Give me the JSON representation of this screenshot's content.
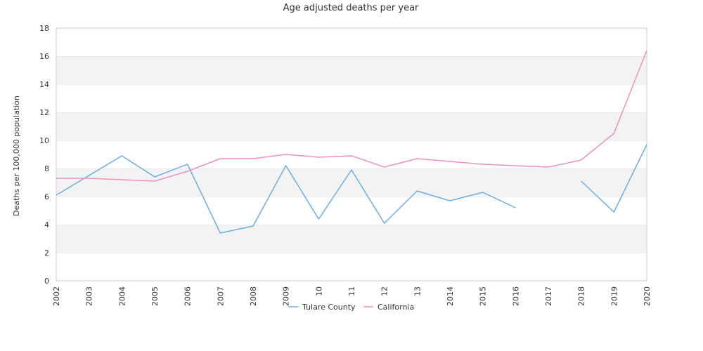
{
  "chart_data": {
    "type": "line",
    "title": "Age adjusted deaths per year",
    "xlabel": "",
    "ylabel": "Deaths per 100,000 population",
    "ylim": [
      0,
      18
    ],
    "yticks": [
      0,
      2,
      4,
      6,
      8,
      10,
      12,
      14,
      16,
      18
    ],
    "categories": [
      "2002",
      "2003",
      "2004",
      "2005",
      "2006",
      "2007",
      "2008",
      "2009",
      "10",
      "11",
      "12",
      "13",
      "2014",
      "2015",
      "2016",
      "2017",
      "2018",
      "2019",
      "2020"
    ],
    "grid": "horizontal alternating bands",
    "legend_position": "bottom",
    "series": [
      {
        "name": "Tulare County",
        "color": "#6aaee8",
        "values": [
          6.1,
          7.5,
          8.9,
          7.4,
          8.3,
          3.4,
          3.9,
          8.2,
          4.4,
          7.9,
          4.1,
          6.4,
          5.7,
          6.3,
          5.2,
          null,
          7.1,
          4.9,
          9.7
        ]
      },
      {
        "name": "California",
        "color": "#ef8fc4",
        "values": [
          7.3,
          7.3,
          7.2,
          7.1,
          7.8,
          8.7,
          8.7,
          9.0,
          8.8,
          8.9,
          8.1,
          8.7,
          8.5,
          8.3,
          8.2,
          8.1,
          8.6,
          10.5,
          16.4
        ]
      }
    ]
  }
}
